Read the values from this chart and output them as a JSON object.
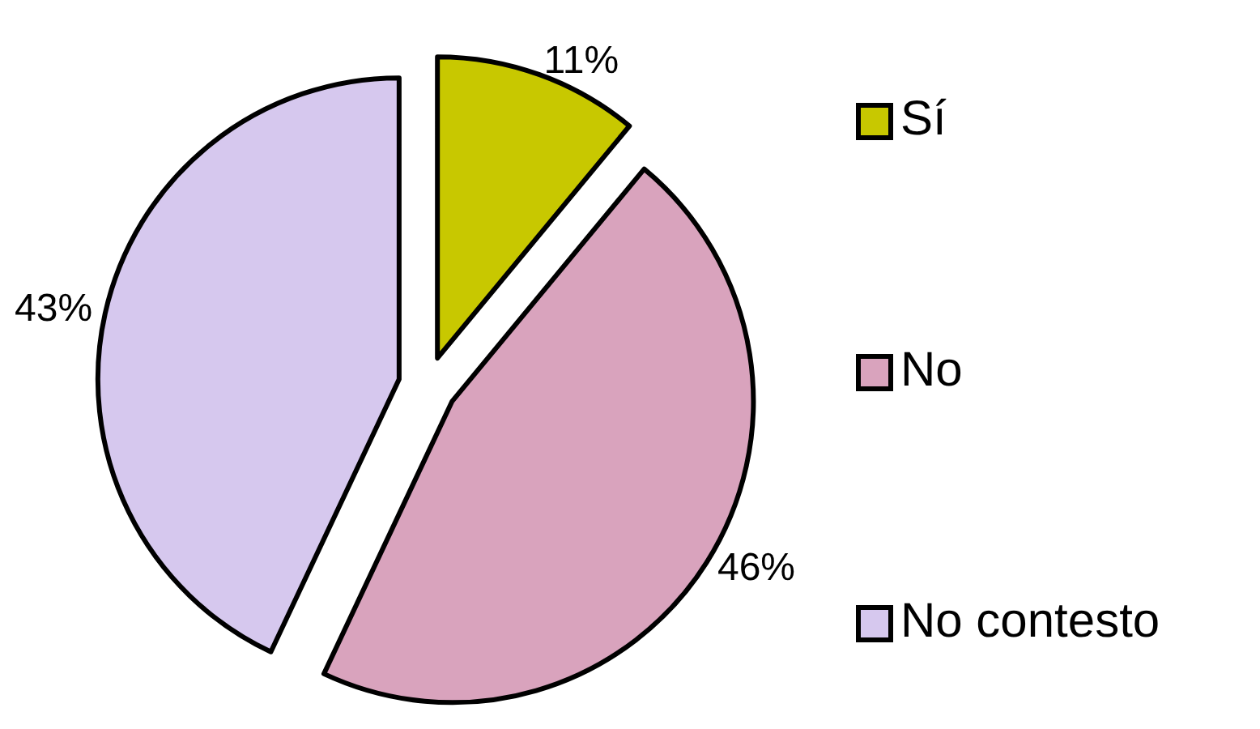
{
  "chart_data": {
    "type": "pie",
    "categories": [
      "Sí",
      "No",
      "No contesto"
    ],
    "values": [
      11,
      46,
      43
    ],
    "colors": [
      "#c8c800",
      "#d9a3bd",
      "#d6c8ee"
    ],
    "value_labels": [
      "11%",
      "46%",
      "43%"
    ],
    "legend": "right"
  }
}
